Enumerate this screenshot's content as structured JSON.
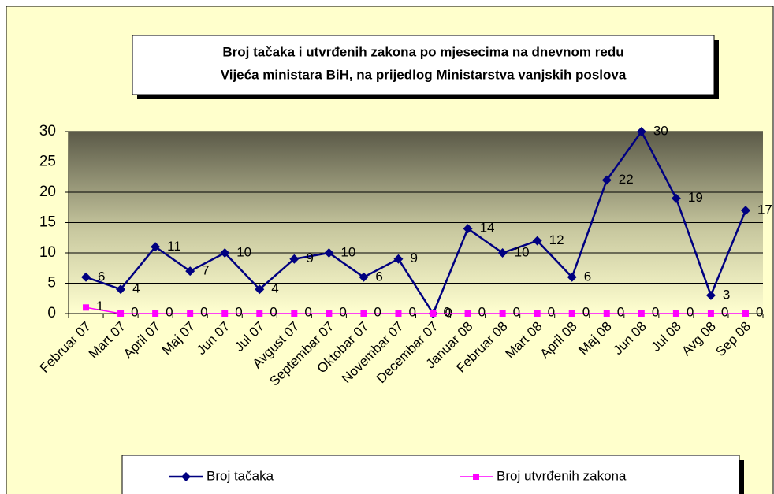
{
  "chart_data": {
    "type": "line",
    "title": [
      "Broj tačaka i utvrđenih zakona po mjesecima na dnevnom redu",
      "Vijeća ministara BiH, na prijedlog Ministarstva vanjskih poslova"
    ],
    "categories": [
      "Februar 07",
      "Mart 07",
      "April 07",
      "Maj 07",
      "Jun 07",
      "Jul 07",
      "Avgust 07",
      "Septembar 07",
      "Oktobar 07",
      "Novembar 07",
      "Decembar 07",
      "Januar 08",
      "Februar 08",
      "Mart 08",
      "April 08",
      "Maj 08",
      "Jun 08",
      "Jul 08",
      "Avg 08",
      "Sep 08"
    ],
    "series": [
      {
        "name": "Broj tačaka",
        "color": "#000080",
        "values": [
          6,
          4,
          11,
          7,
          10,
          4,
          9,
          10,
          6,
          9,
          0,
          14,
          10,
          12,
          6,
          22,
          30,
          19,
          3,
          17
        ]
      },
      {
        "name": "Broj utvrđenih zakona",
        "color": "#ff00ff",
        "values": [
          1,
          0,
          0,
          0,
          0,
          0,
          0,
          0,
          0,
          0,
          0,
          0,
          0,
          0,
          0,
          0,
          0,
          0,
          0,
          0
        ]
      }
    ],
    "ylim": [
      0,
      30
    ],
    "yticks": [
      0,
      5,
      10,
      15,
      20,
      25,
      30
    ],
    "grid": true,
    "legend": "bottom"
  }
}
